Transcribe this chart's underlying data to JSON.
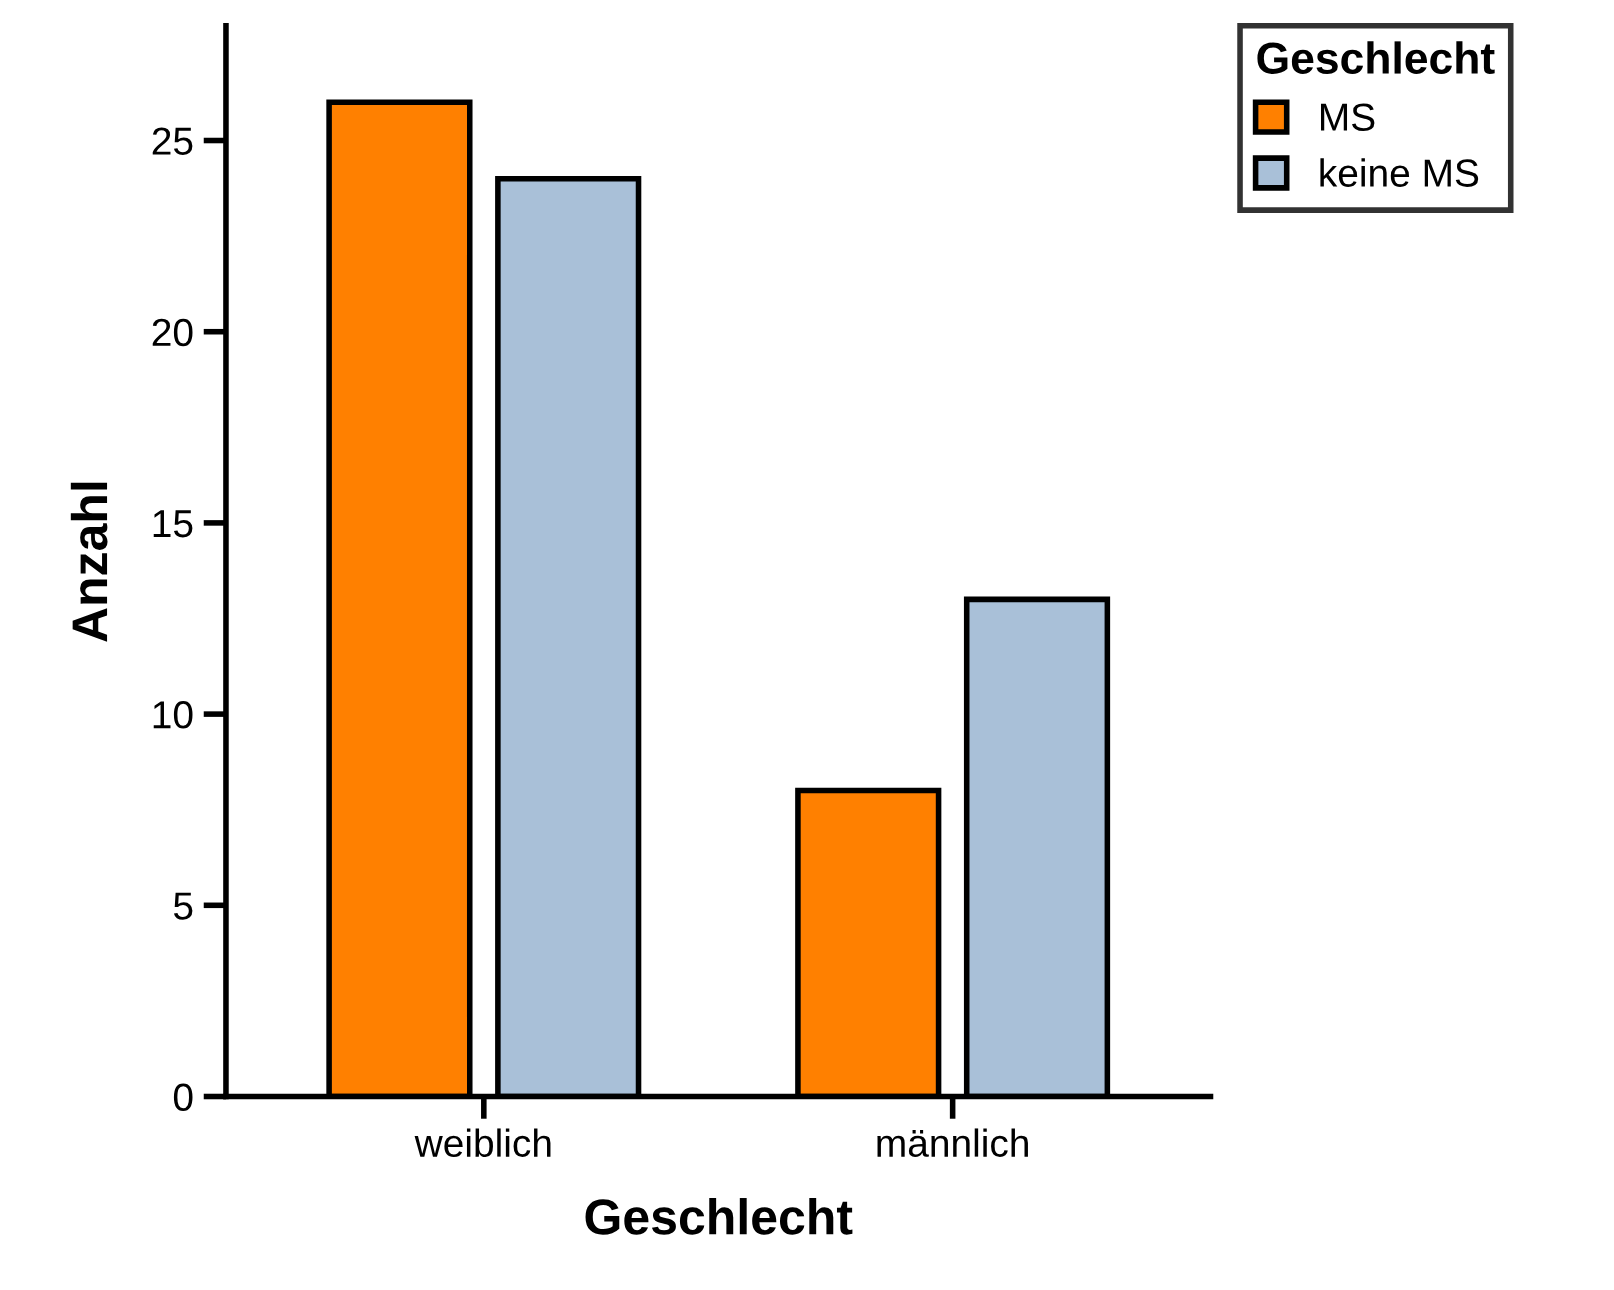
{
  "chart_data": {
    "type": "bar",
    "xlabel": "Geschlecht",
    "ylabel": "Anzahl",
    "legend_title": "Geschlecht",
    "categories": [
      "weiblich",
      "männlich"
    ],
    "series": [
      {
        "name": "MS",
        "color": "#ff8000",
        "values": [
          26,
          8
        ]
      },
      {
        "name": "keine MS",
        "color": "#a9c0d8",
        "values": [
          24,
          13
        ]
      }
    ],
    "ylim": [
      0,
      28
    ],
    "yticks": [
      0,
      5,
      10,
      15,
      20,
      25
    ],
    "grid": false,
    "legend": "top right"
  }
}
